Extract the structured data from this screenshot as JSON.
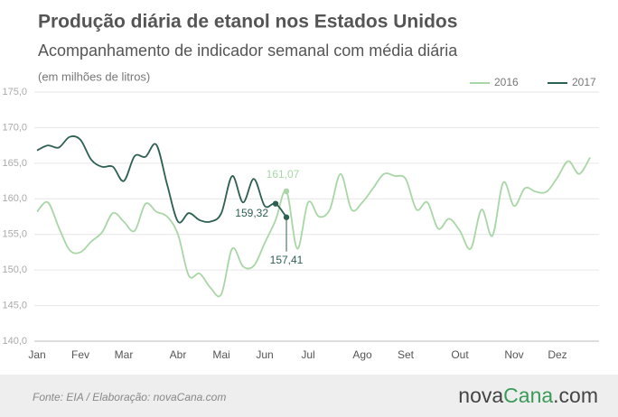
{
  "chart_data": {
    "type": "line",
    "title": "Produção diária de etanol nos Estados Unidos",
    "subtitle": "Acompanhamento de indicador semanal com média diária",
    "annotation": "(em milhões de litros)",
    "categories": [
      "Jan",
      null,
      null,
      null,
      "Fev",
      null,
      null,
      null,
      "Mar",
      null,
      null,
      null,
      null,
      "Abr",
      null,
      null,
      null,
      "Mai",
      null,
      null,
      null,
      "Jun",
      null,
      null,
      null,
      "Jul",
      null,
      null,
      null,
      null,
      "Ago",
      null,
      null,
      null,
      "Set",
      null,
      null,
      null,
      null,
      "Out",
      null,
      null,
      null,
      null,
      "Nov",
      null,
      null,
      null,
      "Dez",
      null,
      null,
      null
    ],
    "series": [
      {
        "name": "2016",
        "color": "#a9d6a6",
        "values": [
          158.2,
          159.5,
          156,
          152.8,
          152.5,
          154,
          155.3,
          158,
          156.8,
          155.5,
          159.3,
          158.2,
          157.5,
          155,
          149.2,
          149.5,
          147.5,
          146.6,
          153,
          150.5,
          150.6,
          153.8,
          157,
          161.07,
          153,
          159.5,
          157.5,
          158.5,
          163.5,
          158.5,
          159.5,
          161.5,
          163.5,
          163.2,
          162.8,
          158.5,
          159.5,
          155.8,
          157.2,
          155.5,
          153,
          158.5,
          154.8,
          162.3,
          159,
          161.5,
          161,
          161,
          163,
          165.3,
          163.5,
          165.8
        ],
        "value_labels": [
          null,
          null,
          null,
          null,
          null,
          null,
          null,
          null,
          null,
          null,
          null,
          null,
          null,
          null,
          null,
          null,
          null,
          null,
          null,
          null,
          null,
          null,
          null,
          "161,07",
          null,
          null,
          null,
          null,
          null,
          null,
          null,
          null,
          null,
          null,
          null,
          null,
          null,
          null,
          null,
          null,
          null,
          null,
          null,
          null,
          null,
          null,
          null,
          null,
          null,
          null,
          null,
          null
        ]
      },
      {
        "name": "2017",
        "color": "#2d5f53",
        "values": [
          166.8,
          167.5,
          167.2,
          168.7,
          168.3,
          165.5,
          164.5,
          164.5,
          162.5,
          166,
          165.9,
          167.6,
          162,
          156.8,
          158,
          157,
          156.8,
          158,
          163.2,
          159.5,
          162.8,
          159,
          159.32,
          157.41,
          null,
          null,
          null,
          null,
          null,
          null,
          null,
          null,
          null,
          null,
          null,
          null,
          null,
          null,
          null,
          null,
          null,
          null,
          null,
          null,
          null,
          null,
          null,
          null,
          null,
          null,
          null,
          null
        ],
        "value_labels": [
          null,
          null,
          null,
          null,
          null,
          null,
          null,
          null,
          null,
          null,
          null,
          null,
          null,
          null,
          null,
          null,
          null,
          null,
          null,
          null,
          null,
          null,
          "159,32",
          "157,41",
          null,
          null,
          null,
          null,
          null,
          null,
          null,
          null,
          null,
          null,
          null,
          null,
          null,
          null,
          null,
          null,
          null,
          null,
          null,
          null,
          null,
          null,
          null,
          null,
          null,
          null,
          null,
          null
        ]
      }
    ],
    "ylim": [
      140,
      175
    ],
    "yticks": [
      {
        "value": 140,
        "label": "140,0"
      },
      {
        "value": 145,
        "label": "145,0"
      },
      {
        "value": 150,
        "label": "150,0"
      },
      {
        "value": 155,
        "label": "155,0"
      },
      {
        "value": 160,
        "label": "160,0"
      },
      {
        "value": 165,
        "label": "165,0"
      },
      {
        "value": 170,
        "label": "170,0"
      },
      {
        "value": 175,
        "label": "175,0"
      }
    ],
    "grid": true,
    "legend": "top-right"
  },
  "footer": {
    "source": "Fonte:  EIA  / Elaboração:  novaCana.com",
    "logo": [
      "nova",
      "Cana",
      ".com"
    ]
  }
}
